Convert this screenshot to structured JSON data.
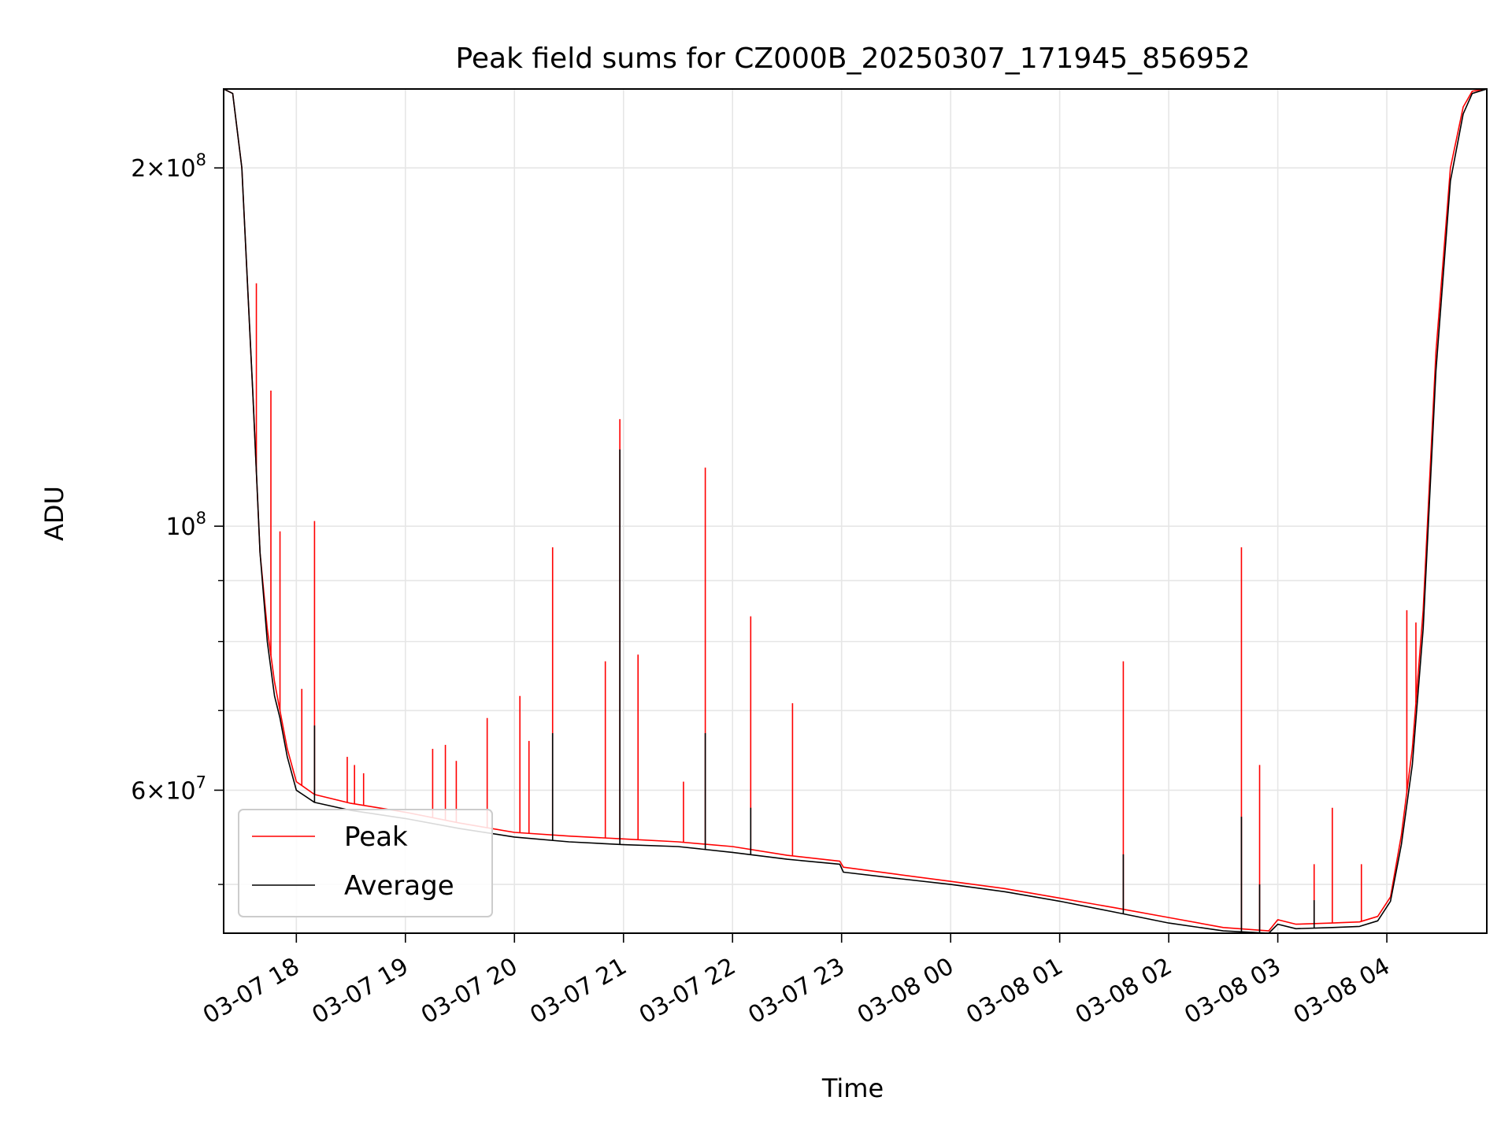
{
  "chart_data": {
    "type": "line",
    "title": "Peak field sums for CZ000B_20250307_171945_856952",
    "xlabel": "Time",
    "ylabel": "ADU",
    "y_scale": "log",
    "ylim": [
      45500000,
      233000000
    ],
    "xlim": [
      "2025-03-07 17:20",
      "2025-03-08 04:55"
    ],
    "grid": true,
    "legend_position": "lower-left",
    "x_ticks": [
      {
        "t": "2025-03-07 18:00",
        "label": "03-07 18"
      },
      {
        "t": "2025-03-07 19:00",
        "label": "03-07 19"
      },
      {
        "t": "2025-03-07 20:00",
        "label": "03-07 20"
      },
      {
        "t": "2025-03-07 21:00",
        "label": "03-07 21"
      },
      {
        "t": "2025-03-07 22:00",
        "label": "03-07 22"
      },
      {
        "t": "2025-03-07 23:00",
        "label": "03-07 23"
      },
      {
        "t": "2025-03-08 00:00",
        "label": "03-08 00"
      },
      {
        "t": "2025-03-08 01:00",
        "label": "03-08 01"
      },
      {
        "t": "2025-03-08 02:00",
        "label": "03-08 02"
      },
      {
        "t": "2025-03-08 03:00",
        "label": "03-08 03"
      },
      {
        "t": "2025-03-08 04:00",
        "label": "03-08 04"
      }
    ],
    "y_ticks_major": [
      {
        "v": 60000000,
        "mant": "6",
        "exp": "7"
      },
      {
        "v": 100000000,
        "mant": "",
        "exp": "8"
      },
      {
        "v": 200000000,
        "mant": "2",
        "exp": "8"
      }
    ],
    "y_ticks_minor": [
      50000000,
      70000000,
      80000000,
      90000000
    ],
    "series": [
      {
        "name": "Peak",
        "color": "#ff0000",
        "x": [
          "2025-03-07 17:20",
          "2025-03-07 17:25",
          "2025-03-07 17:30",
          "2025-03-07 17:36",
          "2025-03-07 17:40",
          "2025-03-07 17:44",
          "2025-03-07 17:48",
          "2025-03-07 17:51",
          "2025-03-07 17:55",
          "2025-03-07 18:00",
          "2025-03-07 18:10",
          "2025-03-07 18:30",
          "2025-03-07 19:00",
          "2025-03-07 19:30",
          "2025-03-07 20:00",
          "2025-03-07 20:30",
          "2025-03-07 21:00",
          "2025-03-07 21:30",
          "2025-03-07 22:00",
          "2025-03-07 22:30",
          "2025-03-07 22:59",
          "2025-03-07 23:01",
          "2025-03-07 23:30",
          "2025-03-08 00:00",
          "2025-03-08 00:30",
          "2025-03-08 01:00",
          "2025-03-08 01:30",
          "2025-03-08 02:00",
          "2025-03-08 02:30",
          "2025-03-08 02:55",
          "2025-03-08 03:00",
          "2025-03-08 03:10",
          "2025-03-08 03:30",
          "2025-03-08 03:45",
          "2025-03-08 03:55",
          "2025-03-08 04:02",
          "2025-03-08 04:08",
          "2025-03-08 04:14",
          "2025-03-08 04:20",
          "2025-03-08 04:27",
          "2025-03-08 04:35",
          "2025-03-08 04:42",
          "2025-03-08 04:47",
          "2025-03-08 04:55"
        ],
        "values": [
          233000000,
          231000000,
          200000000,
          130000000,
          95000000,
          82000000,
          74000000,
          70000000,
          65000000,
          61000000,
          59500000,
          58500000,
          57500000,
          56300000,
          55300000,
          54900000,
          54600000,
          54300000,
          53800000,
          52900000,
          52300000,
          51700000,
          51000000,
          50300000,
          49600000,
          48700000,
          47800000,
          46900000,
          46000000,
          45700000,
          46700000,
          46300000,
          46400000,
          46500000,
          47000000,
          48800000,
          55000000,
          65000000,
          85000000,
          140000000,
          200000000,
          225000000,
          232000000,
          233000000
        ],
        "spikes": [
          [
            "2025-03-07 17:38",
            160000000
          ],
          [
            "2025-03-07 17:46",
            130000000
          ],
          [
            "2025-03-07 17:51",
            99000000
          ],
          [
            "2025-03-07 18:03",
            73000000
          ],
          [
            "2025-03-07 18:10",
            101000000
          ],
          [
            "2025-03-07 18:28",
            64000000
          ],
          [
            "2025-03-07 18:32",
            63000000
          ],
          [
            "2025-03-07 18:37",
            62000000
          ],
          [
            "2025-03-07 19:15",
            65000000
          ],
          [
            "2025-03-07 19:22",
            65500000
          ],
          [
            "2025-03-07 19:28",
            63500000
          ],
          [
            "2025-03-07 19:45",
            69000000
          ],
          [
            "2025-03-07 20:03",
            72000000
          ],
          [
            "2025-03-07 20:08",
            66000000
          ],
          [
            "2025-03-07 20:21",
            96000000
          ],
          [
            "2025-03-07 20:50",
            77000000
          ],
          [
            "2025-03-07 20:58",
            123000000
          ],
          [
            "2025-03-07 21:08",
            78000000
          ],
          [
            "2025-03-07 21:33",
            61000000
          ],
          [
            "2025-03-07 21:45",
            112000000
          ],
          [
            "2025-03-07 22:10",
            84000000
          ],
          [
            "2025-03-07 22:33",
            71000000
          ],
          [
            "2025-03-08 01:35",
            77000000
          ],
          [
            "2025-03-08 02:40",
            96000000
          ],
          [
            "2025-03-08 02:50",
            63000000
          ],
          [
            "2025-03-08 03:20",
            52000000
          ],
          [
            "2025-03-08 03:30",
            58000000
          ],
          [
            "2025-03-08 03:46",
            52000000
          ],
          [
            "2025-03-08 04:11",
            85000000
          ],
          [
            "2025-03-08 04:16",
            83000000
          ]
        ]
      },
      {
        "name": "Average",
        "color": "#000000",
        "x": [
          "2025-03-07 17:20",
          "2025-03-07 17:25",
          "2025-03-07 17:30",
          "2025-03-07 17:36",
          "2025-03-07 17:40",
          "2025-03-07 17:44",
          "2025-03-07 17:48",
          "2025-03-07 17:51",
          "2025-03-07 17:55",
          "2025-03-07 18:00",
          "2025-03-07 18:10",
          "2025-03-07 18:30",
          "2025-03-07 19:00",
          "2025-03-07 19:30",
          "2025-03-07 20:00",
          "2025-03-07 20:30",
          "2025-03-07 21:00",
          "2025-03-07 21:30",
          "2025-03-07 22:00",
          "2025-03-07 22:30",
          "2025-03-07 22:59",
          "2025-03-07 23:01",
          "2025-03-07 23:30",
          "2025-03-08 00:00",
          "2025-03-08 00:30",
          "2025-03-08 01:00",
          "2025-03-08 01:30",
          "2025-03-08 02:00",
          "2025-03-08 02:30",
          "2025-03-08 02:55",
          "2025-03-08 03:00",
          "2025-03-08 03:10",
          "2025-03-08 03:30",
          "2025-03-08 03:45",
          "2025-03-08 03:55",
          "2025-03-08 04:02",
          "2025-03-08 04:08",
          "2025-03-08 04:14",
          "2025-03-08 04:20",
          "2025-03-08 04:27",
          "2025-03-08 04:35",
          "2025-03-08 04:42",
          "2025-03-08 04:47",
          "2025-03-08 04:55"
        ],
        "values": [
          233000000,
          231000000,
          200000000,
          130000000,
          95000000,
          80000000,
          72000000,
          69000000,
          64000000,
          60000000,
          58600000,
          57700000,
          56800000,
          55700000,
          54800000,
          54300000,
          54000000,
          53800000,
          53200000,
          52500000,
          52000000,
          51200000,
          50600000,
          50000000,
          49300000,
          48400000,
          47400000,
          46400000,
          45700000,
          45500000,
          46300000,
          45900000,
          46000000,
          46100000,
          46600000,
          48400000,
          54000000,
          63000000,
          82000000,
          135000000,
          195000000,
          222000000,
          231000000,
          233000000
        ],
        "spikes": [
          [
            "2025-03-07 18:10",
            68000000
          ],
          [
            "2025-03-07 20:21",
            67000000
          ],
          [
            "2025-03-07 20:58",
            116000000
          ],
          [
            "2025-03-07 21:45",
            67000000
          ],
          [
            "2025-03-07 22:10",
            58000000
          ],
          [
            "2025-03-08 01:35",
            53000000
          ],
          [
            "2025-03-08 02:40",
            57000000
          ],
          [
            "2025-03-08 02:50",
            50000000
          ],
          [
            "2025-03-08 03:20",
            48500000
          ]
        ]
      }
    ]
  }
}
